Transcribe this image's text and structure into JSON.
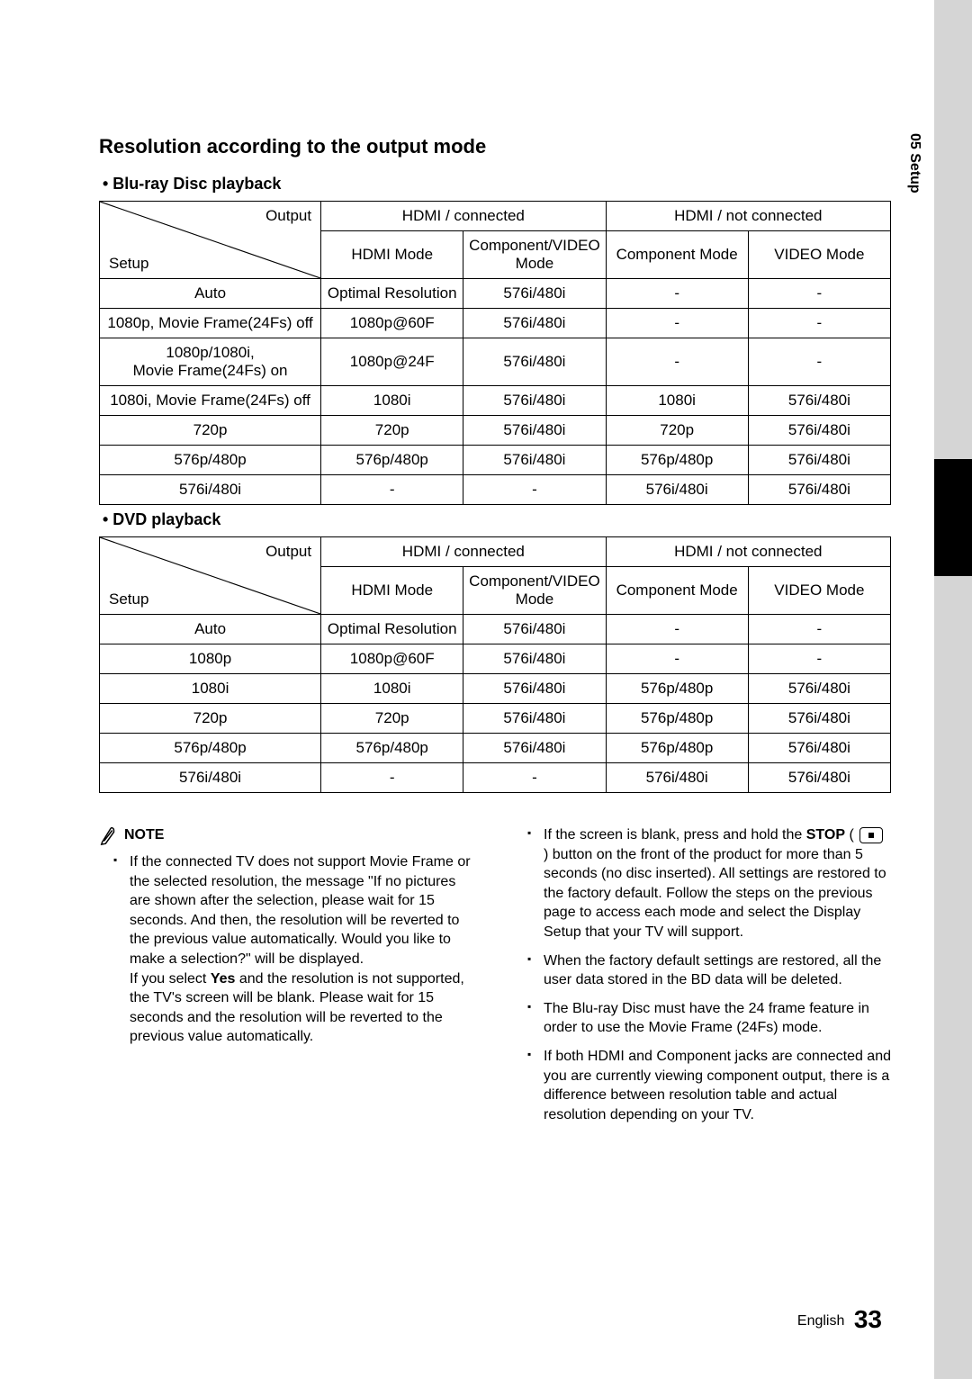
{
  "sideTab": "05   Setup",
  "title": "Resolution according to the output mode",
  "tableHeaders": {
    "output": "Output",
    "setup": "Setup",
    "hdmiConn": "HDMI / connected",
    "hdmiNotConn": "HDMI / not connected",
    "hdmiMode": "HDMI Mode",
    "compVideoMode": "Component/VIDEO Mode",
    "compMode": "Component Mode",
    "videoMode": "VIDEO Mode"
  },
  "tables": [
    {
      "caption": "•  Blu-ray Disc playback",
      "rows": [
        [
          "Auto",
          "Optimal Resolution",
          "576i/480i",
          "-",
          "-"
        ],
        [
          "1080p, Movie Frame(24Fs) off",
          "1080p@60F",
          "576i/480i",
          "-",
          "-"
        ],
        [
          "1080p/1080i,\nMovie Frame(24Fs) on",
          "1080p@24F",
          "576i/480i",
          "-",
          "-"
        ],
        [
          "1080i, Movie Frame(24Fs) off",
          "1080i",
          "576i/480i",
          "1080i",
          "576i/480i"
        ],
        [
          "720p",
          "720p",
          "576i/480i",
          "720p",
          "576i/480i"
        ],
        [
          "576p/480p",
          "576p/480p",
          "576i/480i",
          "576p/480p",
          "576i/480i"
        ],
        [
          "576i/480i",
          "-",
          "-",
          "576i/480i",
          "576i/480i"
        ]
      ]
    },
    {
      "caption": "•  DVD playback",
      "rows": [
        [
          "Auto",
          "Optimal Resolution",
          "576i/480i",
          "-",
          "-"
        ],
        [
          "1080p",
          "1080p@60F",
          "576i/480i",
          "-",
          "-"
        ],
        [
          "1080i",
          "1080i",
          "576i/480i",
          "576p/480p",
          "576i/480i"
        ],
        [
          "720p",
          "720p",
          "576i/480i",
          "576p/480p",
          "576i/480i"
        ],
        [
          "576p/480p",
          "576p/480p",
          "576i/480i",
          "576p/480p",
          "576i/480i"
        ],
        [
          "576i/480i",
          "-",
          "-",
          "576i/480i",
          "576i/480i"
        ]
      ]
    }
  ],
  "noteLabel": "NOTE",
  "notesLeft": [
    "If the connected TV does not support Movie Frame or the selected resolution, the message \"If no pictures are shown after the selection, please wait for 15 seconds. And then, the resolution will be reverted to the previous value automatically. Would you like to make a selection?\" will be displayed.\nIf you select <b>Yes</b> and the resolution is not supported, the TV's screen will be blank. Please wait for 15 seconds and the resolution will be reverted to the previous value automatically."
  ],
  "notesRight": [
    "If the screen is blank, press and hold the <b>STOP</b> ( <span class=\"stop-icon\"></span> ) button on the front of the product for more than 5 seconds (no disc inserted). All settings are restored to the factory default. Follow the steps on the previous page to access each mode and select the Display Setup that your TV will support.",
    "When the factory default settings are restored, all the user data stored in the BD data will be deleted.",
    "The Blu-ray Disc must have the 24 frame feature in order to use the Movie Frame (24Fs) mode.",
    "If both HDMI and Component jacks are connected and you are currently viewing component output, there is a difference between resolution table and actual resolution depending on your TV."
  ],
  "footer": {
    "lang": "English",
    "page": "33"
  }
}
